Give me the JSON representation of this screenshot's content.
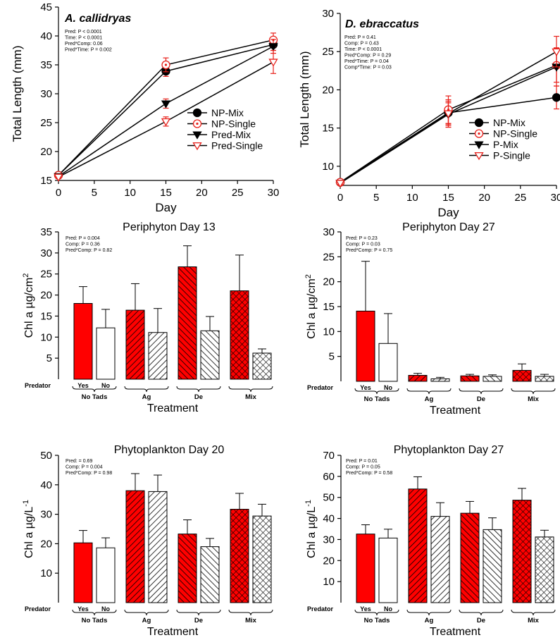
{
  "colors": {
    "red": "#ff0000",
    "black": "#000000",
    "white": "#ffffff",
    "line_red": "#e8201a"
  },
  "chart_data": [
    {
      "id": "p1",
      "type": "line",
      "title": "A. callidryas",
      "xlabel": "Day",
      "ylabel": "Total Length (mm)",
      "xlim": [
        0,
        30
      ],
      "ylim": [
        15,
        45
      ],
      "xticks": [
        "0",
        "5",
        "10",
        "15",
        "20",
        "25",
        "30"
      ],
      "yticks": [
        "15",
        "20",
        "25",
        "30",
        "35",
        "40",
        "45"
      ],
      "stats": [
        "Pred: P < 0.0001",
        "Time: P < 0.0001",
        "Pred*Comp: 0.06",
        "Pred*Time: P = 0.002"
      ],
      "x": [
        0,
        15,
        30
      ],
      "series": [
        {
          "name": "NP-Mix",
          "marker": "filled-circle",
          "values": [
            15.9,
            33.9,
            38.5
          ],
          "err": [
            0.3,
            0.9,
            1.0
          ]
        },
        {
          "name": "NP-Single",
          "marker": "open-circle",
          "values": [
            15.9,
            35.0,
            39.3
          ],
          "err": [
            0.3,
            1.2,
            1.2
          ]
        },
        {
          "name": "Pred-Mix",
          "marker": "filled-triangle",
          "values": [
            15.7,
            28.3,
            38.2
          ],
          "err": [
            0.3,
            0.8,
            1.2
          ]
        },
        {
          "name": "Pred-Single",
          "marker": "open-triangle",
          "values": [
            15.6,
            25.2,
            35.5
          ],
          "err": [
            0.3,
            0.8,
            2.0
          ]
        }
      ]
    },
    {
      "id": "p2",
      "type": "line",
      "title": "D. ebraccatus",
      "xlabel": "Day",
      "ylabel": "Total Length (mm)",
      "xlim": [
        0,
        30
      ],
      "ylim": [
        7.5,
        30
      ],
      "xticks": [
        "0",
        "5",
        "10",
        "15",
        "20",
        "25",
        "30"
      ],
      "yticks": [
        "10",
        "15",
        "20",
        "25",
        "30"
      ],
      "stats": [
        "Pred: P = 0.41",
        "Comp: P = 0.43",
        "Time: P < 0.0001",
        "Pred*Comp: P = 0.29",
        "Pred*Time: P = 0.04",
        "Comp*Time: P = 0.03"
      ],
      "x": [
        0,
        15,
        30
      ],
      "series": [
        {
          "name": "NP-Mix",
          "marker": "filled-circle",
          "values": [
            7.9,
            17.0,
            19.0
          ],
          "err": [
            0.2,
            1.5,
            1.5
          ]
        },
        {
          "name": "NP-Single",
          "marker": "open-circle",
          "values": [
            7.9,
            17.4,
            23.2
          ],
          "err": [
            0.2,
            1.8,
            2.2
          ]
        },
        {
          "name": "P-Mix",
          "marker": "filled-triangle",
          "values": [
            7.8,
            16.8,
            23.0
          ],
          "err": [
            0.2,
            1.5,
            2.5
          ]
        },
        {
          "name": "P-Single",
          "marker": "open-triangle",
          "values": [
            7.8,
            16.9,
            25.0
          ],
          "err": [
            0.2,
            1.8,
            2.0
          ]
        }
      ]
    },
    {
      "id": "b1",
      "type": "bar",
      "title": "Periphyton Day 13",
      "xlabel": "Treatment",
      "ylabel": "Chl a µg/cm",
      "ylabel_sup": "2",
      "ylim": [
        0,
        35
      ],
      "yticks": [
        "5",
        "10",
        "15",
        "20",
        "25",
        "30",
        "35"
      ],
      "stats": [
        "Pred: P = 0.004",
        "Comp: P = 0.36",
        "Pred*Comp: P = 0.82"
      ],
      "values": [
        18.0,
        12.2,
        16.4,
        11.1,
        26.7,
        11.5,
        21.0,
        6.2
      ],
      "err": [
        4.0,
        4.4,
        6.3,
        5.7,
        5.0,
        3.4,
        8.5,
        1.0
      ]
    },
    {
      "id": "b2",
      "type": "bar",
      "title": "Periphyton Day 27",
      "xlabel": "Treatment",
      "ylabel": "Chl a µg/cm",
      "ylabel_sup": "2",
      "ylim": [
        0,
        30
      ],
      "yticks": [
        "5",
        "10",
        "15",
        "20",
        "25",
        "30"
      ],
      "stats": [
        "Pred: P = 0.23",
        "Comp: P = 0.03",
        "Pred*Comp: P = 0.75"
      ],
      "values": [
        14.1,
        7.6,
        1.2,
        0.5,
        1.1,
        1.0,
        2.2,
        1.0
      ],
      "err": [
        10.0,
        6.0,
        0.4,
        0.3,
        0.3,
        0.3,
        1.3,
        0.4
      ]
    },
    {
      "id": "b3",
      "type": "bar",
      "title": "Phytoplankton Day 20",
      "xlabel": "Treatment",
      "ylabel": "Chl a µg/L",
      "ylabel_sup": "-1",
      "ylim": [
        0,
        50
      ],
      "yticks": [
        "10",
        "20",
        "30",
        "40",
        "50"
      ],
      "stats": [
        "Pred:  = 0.69",
        "Comp: P = 0.004",
        "Pred*Comp: P = 0.98"
      ],
      "values": [
        20.3,
        18.6,
        38.0,
        37.7,
        23.3,
        19.0,
        31.7,
        29.4
      ],
      "err": [
        4.2,
        3.4,
        5.8,
        5.6,
        4.8,
        2.8,
        5.4,
        4.0
      ]
    },
    {
      "id": "b4",
      "type": "bar",
      "title": "Phytoplankton Day 27",
      "xlabel": "Treatment",
      "ylabel": "Chl a µg/L",
      "ylabel_sup": "-1",
      "ylim": [
        0,
        70
      ],
      "yticks": [
        "10",
        "20",
        "30",
        "40",
        "50",
        "60",
        "70"
      ],
      "stats": [
        "Pred: P = 0.01",
        "Comp: P = 0.05",
        "Pred*Comp: P = 0.58"
      ],
      "values": [
        32.6,
        30.7,
        54.0,
        41.0,
        42.5,
        34.7,
        48.7,
        31.2
      ],
      "err": [
        4.4,
        4.2,
        5.8,
        6.5,
        5.6,
        5.6,
        5.6,
        3.2
      ]
    }
  ],
  "bar_axis": {
    "predator_label": "Predator",
    "yes": "Yes",
    "no": "No",
    "groups": [
      "No Tads",
      "Ag",
      "De",
      "Mix"
    ]
  }
}
